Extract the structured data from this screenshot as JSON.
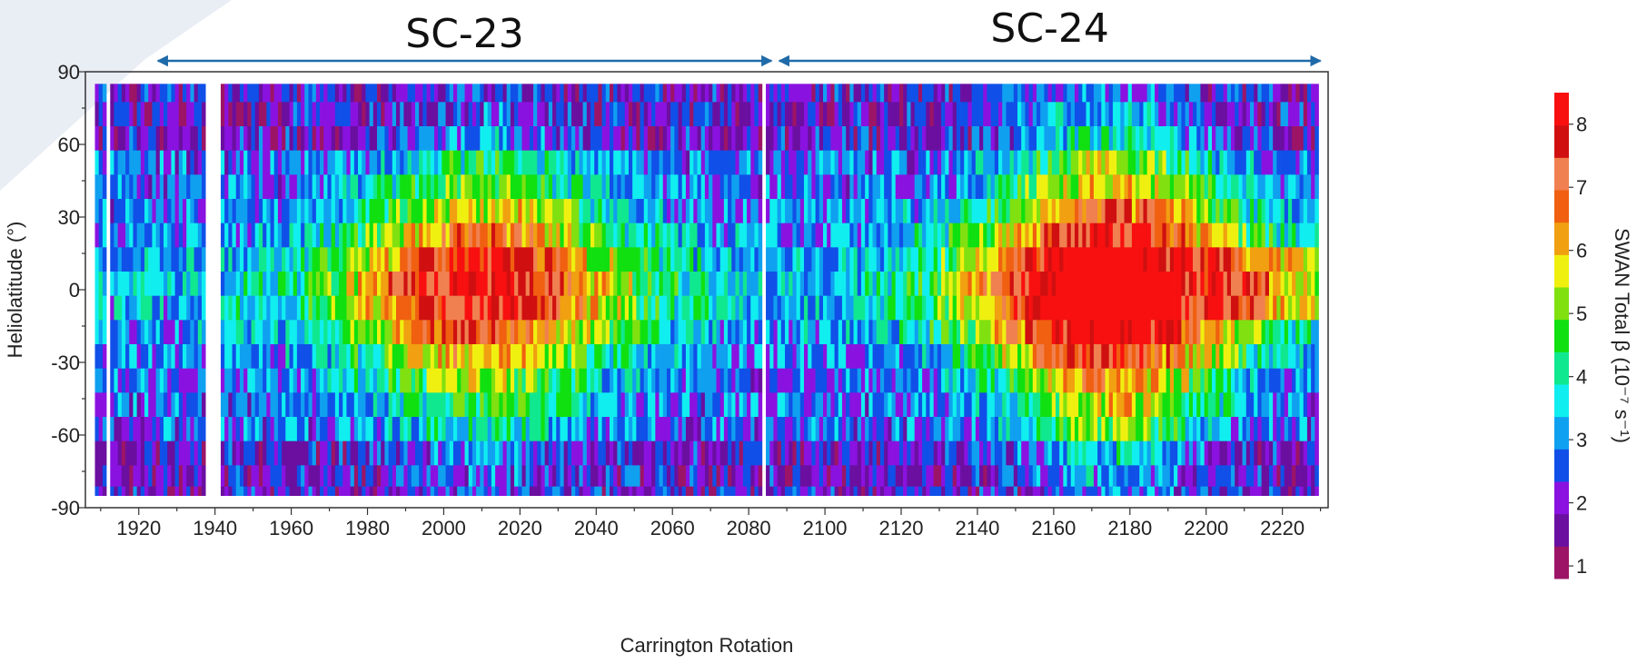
{
  "chart_data": {
    "type": "heatmap",
    "xlabel": "Carrington Rotation",
    "ylabel": "Heliolatitude (°)",
    "colorbar_label": "SWAN Total β (10⁻⁷ s⁻¹)",
    "xlim": [
      1906,
      2232
    ],
    "ylim": [
      -90,
      90
    ],
    "x_ticks": [
      1920,
      1940,
      1960,
      1980,
      2000,
      2020,
      2040,
      2060,
      2080,
      2100,
      2120,
      2140,
      2160,
      2180,
      2200,
      2220
    ],
    "y_ticks": [
      90,
      60,
      30,
      0,
      -30,
      -60,
      -90
    ],
    "y_tick_labels": [
      "90",
      "60",
      "30",
      "0",
      "-30",
      "-60",
      "-90"
    ],
    "colorbar_ticks": [
      8,
      7,
      6,
      5,
      4,
      3,
      2,
      1
    ],
    "colorbar_range": [
      0.8,
      8.5
    ],
    "colorbar_colors": [
      "#9c1466",
      "#6a0fa0",
      "#8a12e0",
      "#1050e8",
      "#10a0f0",
      "#10eef0",
      "#10e890",
      "#10e010",
      "#80e010",
      "#f0f010",
      "#f0a010",
      "#f06010",
      "#f08050",
      "#d01010",
      "#f81010"
    ],
    "latitude_bins": [
      82.5,
      72.5,
      62.5,
      52.5,
      42.5,
      32.5,
      22.5,
      12.5,
      2.5,
      -7.5,
      -17.5,
      -27.5,
      -37.5,
      -47.5,
      -57.5,
      -67.5,
      -77.5,
      -85
    ],
    "data_x_range": [
      1909,
      2229
    ],
    "data_gaps": [
      {
        "from": 1911.5,
        "to": 1912.5
      },
      {
        "from": 1937.5,
        "to": 1941.5
      },
      {
        "from": 2083.5,
        "to": 2084.5
      },
      {
        "from": 2199.5,
        "to": 2200.0
      }
    ],
    "annotations": [
      {
        "label": "SC-23",
        "x_start": 1925,
        "x_end": 2086
      },
      {
        "label": "SC-24",
        "x_start": 2088,
        "x_end": 2230
      }
    ],
    "series_note": "",
    "grid": false
  }
}
